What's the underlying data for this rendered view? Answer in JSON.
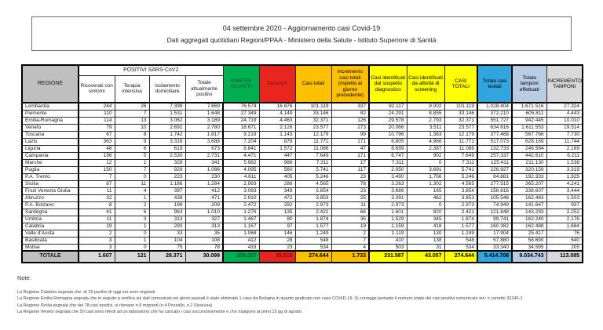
{
  "title": {
    "line1": "04 settembre 2020 - Aggiornamento casi Covid-19",
    "line2": "Dati aggregati quotidiani Regioni/PPAA - Ministero della Salute - Istituto Superiore di Sanità"
  },
  "table": {
    "group_header": "POSITIVI SARS-CoV2",
    "columns": [
      "REGIONE",
      "Ricoverati con sintomi",
      "Terapia intensiva",
      "Isolamento domiciliare",
      "Totale attualmente positivi",
      "DIMESSI GUARITI",
      "Deceduti",
      "Casi totali",
      "Incremento casi totali (rispetto al giorno precedente)",
      "Casi identificati dal sospetto diagnostico",
      "Casi identificati da attività di screening",
      "CASI TOTALI",
      "Totale casi testati",
      "Totale tamponi effettuati",
      "INCREMENTO TAMPONI"
    ],
    "rows": [
      {
        "region": "Lombardia",
        "values": [
          "244",
          "26",
          "7.399",
          "7.669",
          "76.574",
          "16.876",
          "101.119",
          "337",
          "92.117",
          "9.002",
          "101.119",
          "1.028.404",
          "1.671.516",
          "27.324"
        ]
      },
      {
        "region": "Piemonte",
        "values": [
          "110",
          "7",
          "1.531",
          "1.648",
          "27.349",
          "4.149",
          "33.146",
          "82",
          "24.291",
          "8.855",
          "33.146",
          "372.210",
          "605.811",
          "4.443"
        ]
      },
      {
        "region": "Emilia-Romagna",
        "values": [
          "114",
          "13",
          "3.062",
          "3.189",
          "24.719",
          "4.463",
          "32.371",
          "126",
          "29.578",
          "2.793",
          "32.371",
          "551.727",
          "942.445",
          "10.010"
        ]
      },
      {
        "region": "Veneto",
        "values": [
          "79",
          "10",
          "2.691",
          "2.780",
          "18.671",
          "2.126",
          "23.577",
          "273",
          "20.066",
          "3.511",
          "23.577",
          "634.616",
          "1.611.553",
          "19.514"
        ]
      },
      {
        "region": "Toscana",
        "values": [
          "67",
          "8",
          "1.742",
          "1.817",
          "9.219",
          "1.143",
          "12.179",
          "99",
          "10.796",
          "1.383",
          "12.179",
          "377.468",
          "567.766",
          "7.730"
        ]
      },
      {
        "region": "Lazio",
        "values": [
          "363",
          "9",
          "3.316",
          "3.688",
          "7.204",
          "879",
          "11.771",
          "171",
          "6.805",
          "4.966",
          "11.771",
          "517.073",
          "628.169",
          "11.744"
        ]
      },
      {
        "region": "Liguria",
        "values": [
          "48",
          "6",
          "619",
          "673",
          "8.841",
          "1.572",
          "11.086",
          "47",
          "8.699",
          "2.387",
          "11.086",
          "132.733",
          "246.584",
          "2.169"
        ]
      },
      {
        "region": "Campania",
        "values": [
          "196",
          "5",
          "2.530",
          "2.731",
          "4.471",
          "447",
          "7.649",
          "171",
          "6.747",
          "902",
          "7.649",
          "257.337",
          "442.610",
          "6.211"
        ]
      },
      {
        "region": "Marche",
        "values": [
          "12",
          "1",
          "328",
          "341",
          "5.982",
          "988",
          "7.311",
          "17",
          "7.311",
          "0",
          "7.311",
          "125.411",
          "211.130",
          "1.538"
        ]
      },
      {
        "region": "Puglia",
        "values": [
          "150",
          "7",
          "929",
          "1.086",
          "4.095",
          "560",
          "5.741",
          "117",
          "2.050",
          "3.691",
          "5.741",
          "226.927",
          "320.159",
          "3.319"
        ]
      },
      {
        "region": "P.A. Trento",
        "values": [
          "7",
          "0",
          "223",
          "230",
          "4.611",
          "405",
          "5.246",
          "23",
          "3.490",
          "1.756",
          "5.246",
          "84.881",
          "192.333",
          "1.925"
        ]
      },
      {
        "region": "Sicilia",
        "values": [
          "87",
          "11",
          "1.186",
          "1.284",
          "2.993",
          "288",
          "4.565",
          "78",
          "3.263",
          "1.302",
          "4.565",
          "277.515",
          "365.207",
          "4.241"
        ]
      },
      {
        "region": "Friuli Venezia Giulia",
        "values": [
          "11",
          "4",
          "397",
          "412",
          "3.093",
          "349",
          "3.854",
          "23",
          "3.689",
          "165",
          "3.854",
          "156.816",
          "338.607",
          "3.444"
        ]
      },
      {
        "region": "Abruzzo",
        "values": [
          "32",
          "1",
          "438",
          "471",
          "2.910",
          "472",
          "3.853",
          "25",
          "3.391",
          "462",
          "3.853",
          "105.546",
          "162.483",
          "1.503"
        ]
      },
      {
        "region": "P.A. Bolzano",
        "values": [
          "8",
          "2",
          "199",
          "209",
          "2.472",
          "292",
          "2.973",
          "11",
          "2.973",
          "0",
          "2.973",
          "74.949",
          "141.647",
          "937"
        ]
      },
      {
        "region": "Sardegna",
        "values": [
          "41",
          "6",
          "963",
          "1.010",
          "1.276",
          "135",
          "2.421",
          "66",
          "1.601",
          "820",
          "2.421",
          "121.848",
          "143.293",
          "2.252"
        ]
      },
      {
        "region": "Umbria",
        "values": [
          "11",
          "3",
          "313",
          "327",
          "1.467",
          "80",
          "1.874",
          "35",
          "1.529",
          "345",
          "1.874",
          "99.741",
          "162.240",
          "2.176"
        ]
      },
      {
        "region": "Calabria",
        "values": [
          "19",
          "1",
          "293",
          "313",
          "1.167",
          "97",
          "1.577",
          "19",
          "1.159",
          "418",
          "1.577",
          "160.382",
          "162.488",
          "1.684"
        ]
      },
      {
        "region": "Valle d'Aosta",
        "values": [
          "2",
          "0",
          "33",
          "35",
          "1.068",
          "146",
          "1.249",
          "2",
          "1.119",
          "130",
          "1.249",
          "17.904",
          "25.417",
          "76"
        ]
      },
      {
        "region": "Basilicata",
        "values": [
          "3",
          "1",
          "104",
          "108",
          "412",
          "28",
          "548",
          "7",
          "410",
          "138",
          "548",
          "57.880",
          "58.690",
          "640"
        ]
      },
      {
        "region": "Molise",
        "values": [
          "3",
          "0",
          "75",
          "78",
          "433",
          "23",
          "534",
          "4",
          "503",
          "31",
          "534",
          "33.340",
          "34.595",
          "205"
        ]
      }
    ],
    "total": {
      "label": "TOTALE",
      "values": [
        "1.607",
        "121",
        "28.371",
        "30.099",
        "209.027",
        "35.518",
        "274.644",
        "1.733",
        "231.587",
        "43.057",
        "274.644",
        "5.414.708",
        "9.034.743",
        "113.085"
      ]
    }
  },
  "notes": {
    "title": "Note:",
    "lines": [
      "La Regione Calabria segnala che: di 19 positivi di oggi sei sono migranti",
      "La Regione Emilia Romagna segnala che in seguito a verifica sui dati comunicati nei giorni passati è stato eliminato 1 caso da Bologna in quanto giudicato non caso COVID-19. Si corregge pertanto il numero totale dei casi positivi comunicato ieri: n corretto 32246-1",
      "La Regione Sicilia segnala che dei 78 casi positivi, si rilevano n.6 migranti (n.4 Pozzallo, n.2 Siracusa)",
      "La Regione Veneto segnala che 50 casi sono riferiti ad un laboratorio che ha caricato i casi successivamente e che risalgono ai primi 15 gg di agosto."
    ]
  },
  "colors": {
    "header_grey": "#BFBFBF",
    "green": "#00B050",
    "red": "#E8251F",
    "gold": "#FFC000",
    "yellow": "#FFFF00",
    "blue": "#31A5DE",
    "lavender": "#B8CCE4",
    "light_grey": "#D9D9D9"
  }
}
